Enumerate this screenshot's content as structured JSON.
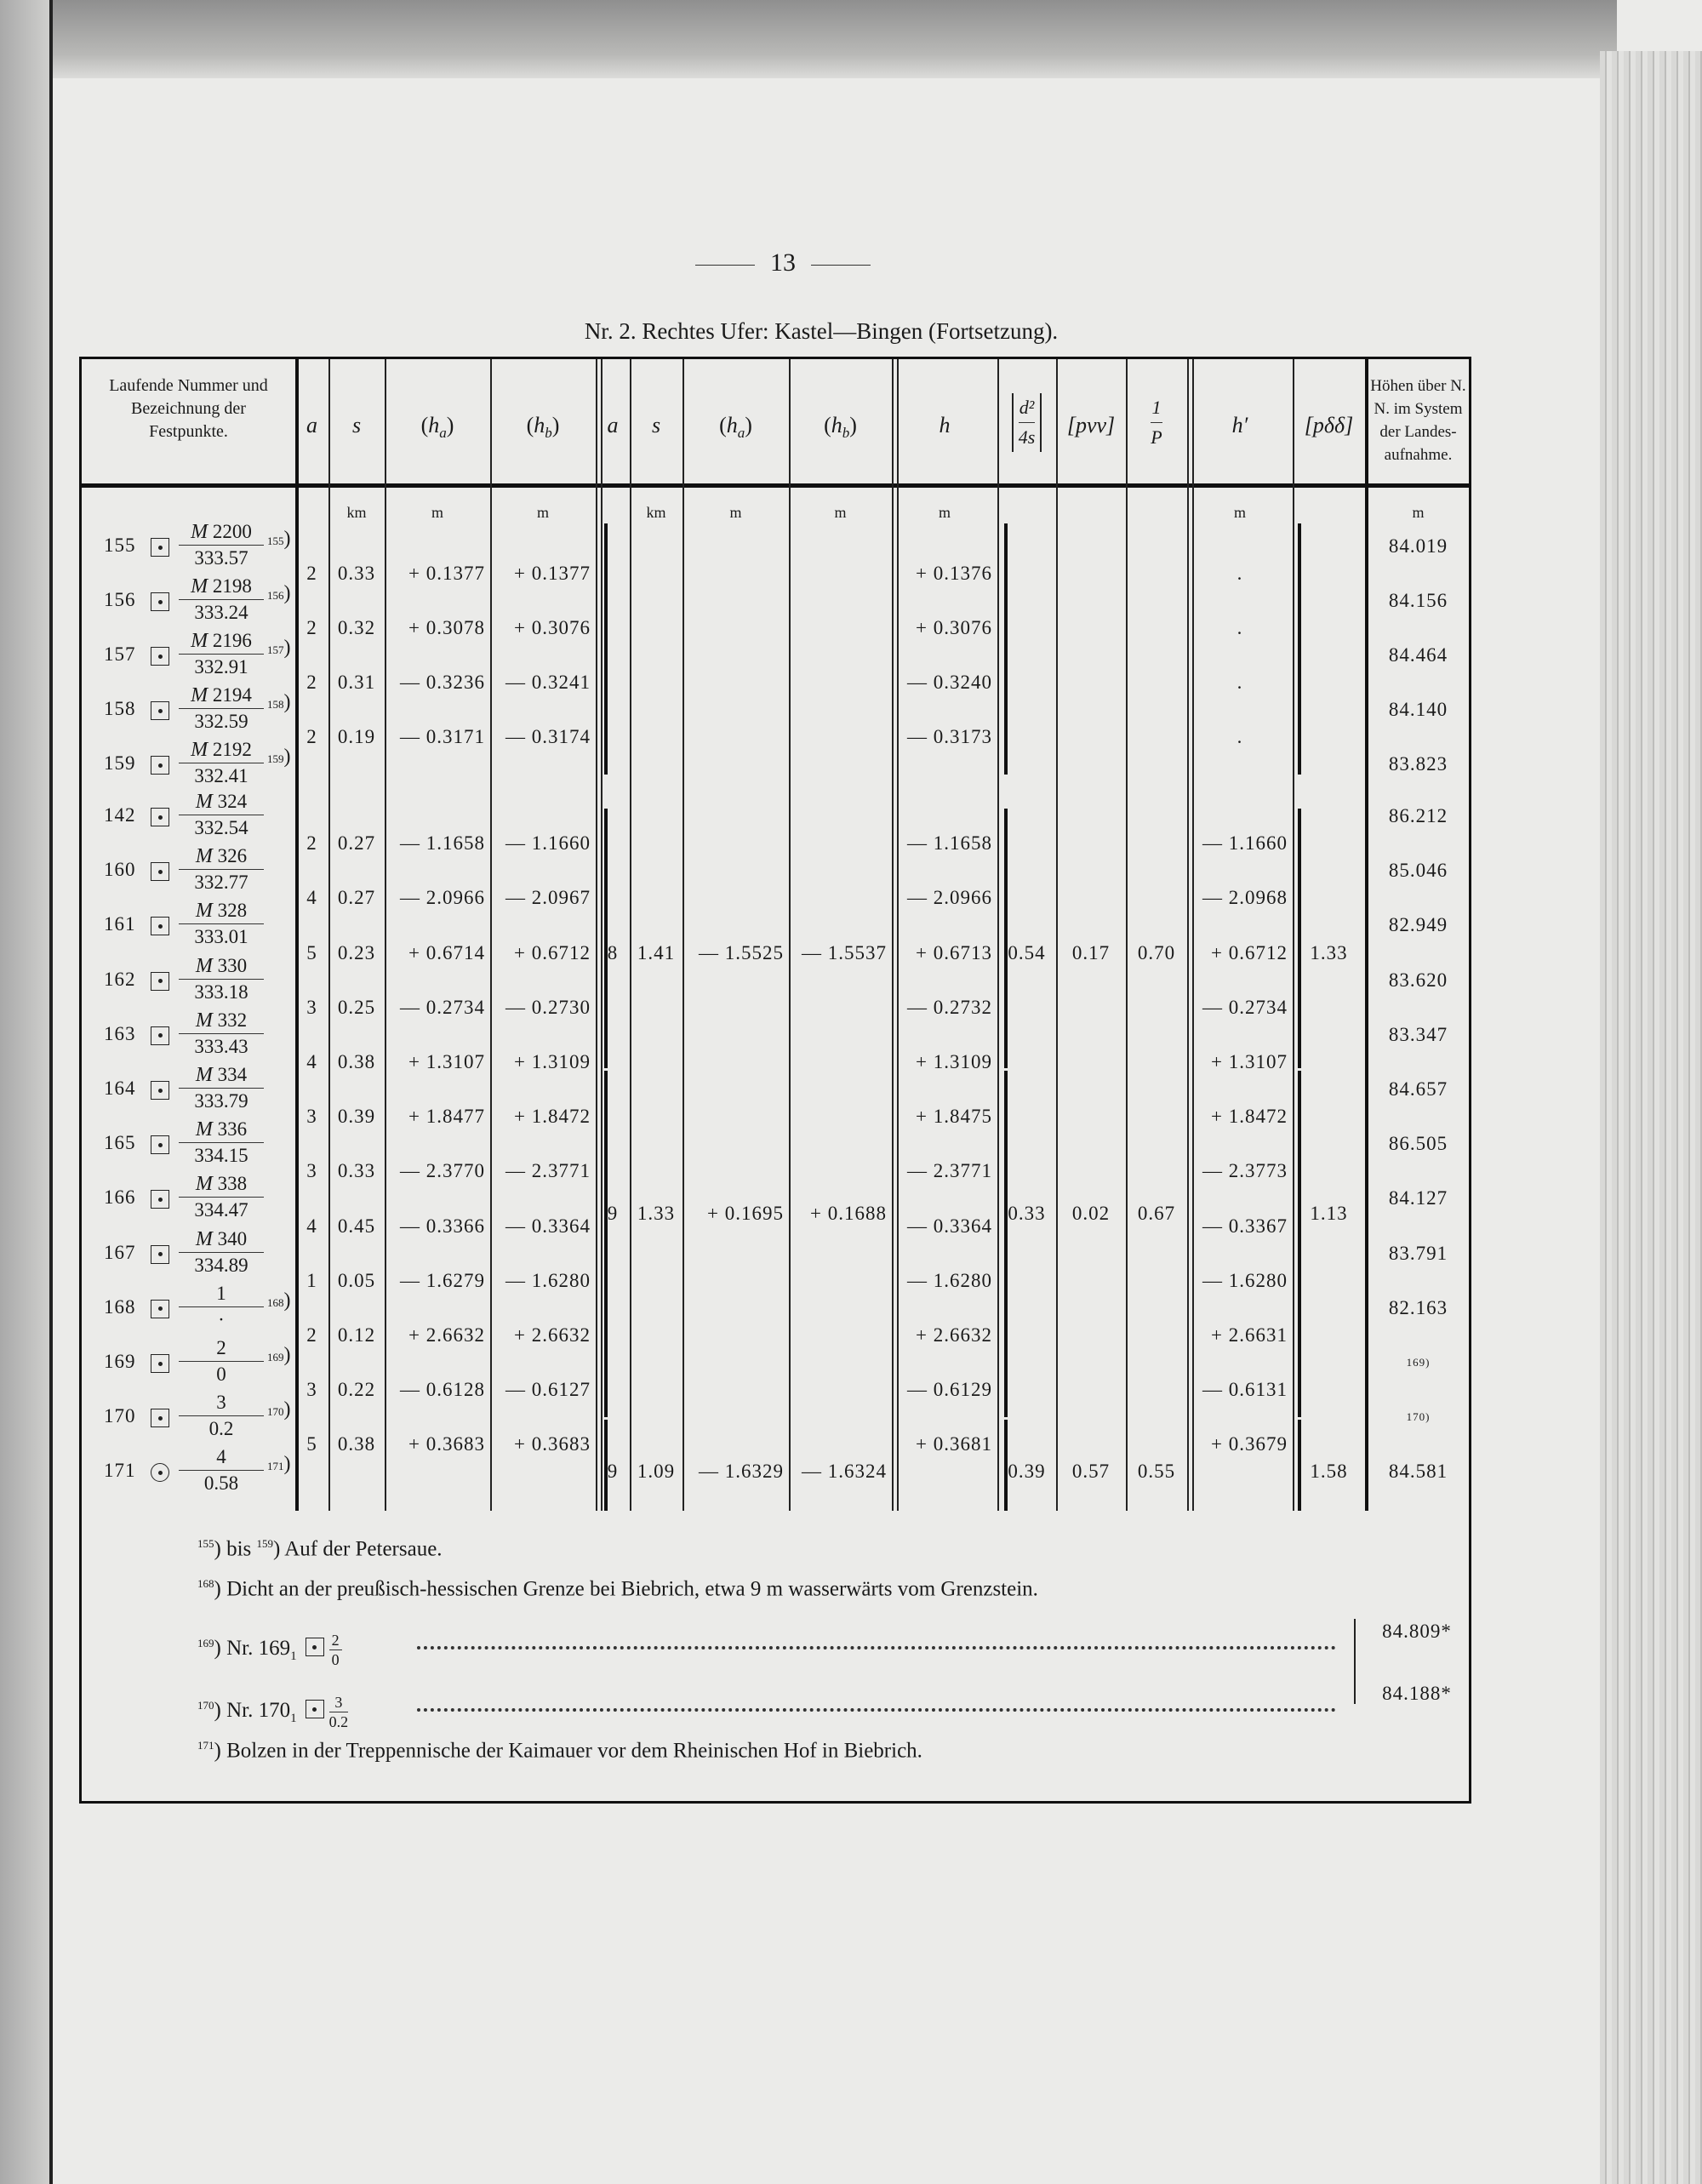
{
  "page_number": "13",
  "title": "Nr. 2. Rechtes Ufer: Kastel—Bingen (Fortsetzung).",
  "header": {
    "label_col": "Laufende Nummer und Bezeichnung der Festpunkte.",
    "a1": "a",
    "s1": "s",
    "ha1": {
      "sym": "h",
      "sub": "a"
    },
    "hb1": {
      "sym": "h",
      "sub": "b"
    },
    "a2": "a",
    "s2": "s",
    "ha2": {
      "sym": "h",
      "sub": "a"
    },
    "hb2": {
      "sym": "h",
      "sub": "b"
    },
    "h": "h",
    "d2": {
      "num": "d²",
      "den": "4s"
    },
    "pvv": "[pvv]",
    "invp": {
      "num": "1",
      "den": "P"
    },
    "hprime": "h′",
    "pdd": "[pδδ]",
    "heights": "Höhen über N. N. im System der Landes-aufnahme."
  },
  "units": {
    "s1": "km",
    "ha1": "m",
    "hb1": "m",
    "s2": "km",
    "ha2": "m",
    "hb2": "m",
    "h": "m",
    "hprime": "m",
    "heights": "m"
  },
  "block1": {
    "labels": [
      {
        "nr": "155",
        "mark": "square-dot",
        "num_prefix": "M",
        "num": "2200",
        "den": "333.57",
        "ref": "155",
        "height": "84.019"
      },
      {
        "nr": "156",
        "mark": "square-dot",
        "num_prefix": "M",
        "num": "2198",
        "den": "333.24",
        "ref": "156",
        "height": "84.156"
      },
      {
        "nr": "157",
        "mark": "square-dot",
        "num_prefix": "M",
        "num": "2196",
        "den": "332.91",
        "ref": "157",
        "height": "84.464"
      },
      {
        "nr": "158",
        "mark": "square-dot",
        "num_prefix": "M",
        "num": "2194",
        "den": "332.59",
        "ref": "158",
        "height": "84.140"
      },
      {
        "nr": "159",
        "mark": "square-dot",
        "num_prefix": "M",
        "num": "2192",
        "den": "332.41",
        "ref": "159",
        "height": "83.823"
      }
    ],
    "rows": [
      {
        "a": "2",
        "s": "0.33",
        "ha": "+ 0.1377",
        "hb": "+ 0.1377",
        "h": "+ 0.1376",
        "hprime": "."
      },
      {
        "a": "2",
        "s": "0.32",
        "ha": "+ 0.3078",
        "hb": "+ 0.3076",
        "h": "+ 0.3076",
        "hprime": "."
      },
      {
        "a": "2",
        "s": "0.31",
        "ha": "— 0.3236",
        "hb": "— 0.3241",
        "h": "— 0.3240",
        "hprime": "."
      },
      {
        "a": "2",
        "s": "0.19",
        "ha": "— 0.3171",
        "hb": "— 0.3174",
        "h": "— 0.3173",
        "hprime": "."
      }
    ]
  },
  "block2": {
    "labels": [
      {
        "nr": "142",
        "mark": "square-dot",
        "num_prefix": "M",
        "num": "324",
        "den": "332.54",
        "ref": "",
        "height": "86.212"
      },
      {
        "nr": "160",
        "mark": "square-dot",
        "num_prefix": "M",
        "num": "326",
        "den": "332.77",
        "ref": "",
        "height": "85.046"
      },
      {
        "nr": "161",
        "mark": "square-dot",
        "num_prefix": "M",
        "num": "328",
        "den": "333.01",
        "ref": "",
        "height": "82.949"
      },
      {
        "nr": "162",
        "mark": "square-dot",
        "num_prefix": "M",
        "num": "330",
        "den": "333.18",
        "ref": "",
        "height": "83.620"
      },
      {
        "nr": "163",
        "mark": "square-dot",
        "num_prefix": "M",
        "num": "332",
        "den": "333.43",
        "ref": "",
        "height": "83.347"
      },
      {
        "nr": "164",
        "mark": "square-dot",
        "num_prefix": "M",
        "num": "334",
        "den": "333.79",
        "ref": "",
        "height": "84.657"
      },
      {
        "nr": "165",
        "mark": "square-dot",
        "num_prefix": "M",
        "num": "336",
        "den": "334.15",
        "ref": "",
        "height": "86.505"
      },
      {
        "nr": "166",
        "mark": "square-dot",
        "num_prefix": "M",
        "num": "338",
        "den": "334.47",
        "ref": "",
        "height": "84.127"
      },
      {
        "nr": "167",
        "mark": "square-dot",
        "num_prefix": "M",
        "num": "340",
        "den": "334.89",
        "ref": "",
        "height": "83.791"
      },
      {
        "nr": "168",
        "mark": "square-dot",
        "num_prefix": "",
        "num": "1",
        "den": "·",
        "ref": "168",
        "height": "82.163"
      },
      {
        "nr": "169",
        "mark": "square-dot",
        "num_prefix": "",
        "num": "2",
        "den": "0",
        "ref": "169",
        "height": "169)"
      },
      {
        "nr": "170",
        "mark": "square-dot",
        "num_prefix": "",
        "num": "3",
        "den": "0.2",
        "ref": "170",
        "height": "170)"
      },
      {
        "nr": "171",
        "mark": "circle-dot",
        "num_prefix": "",
        "num": "4",
        "den": "0.58",
        "ref": "171",
        "height": "84.581"
      }
    ],
    "rows": [
      {
        "a": "2",
        "s": "0.27",
        "ha": "— 1.1658",
        "hb": "— 1.1660",
        "h": "— 1.1658",
        "hprime": "— 1.1660"
      },
      {
        "a": "4",
        "s": "0.27",
        "ha": "— 2.0966",
        "hb": "— 2.0967",
        "h": "— 2.0966",
        "hprime": "— 2.0968"
      },
      {
        "a": "5",
        "s": "0.23",
        "ha": "+ 0.6714",
        "hb": "+ 0.6712",
        "h": "+ 0.6713",
        "hprime": "+ 0.6712"
      },
      {
        "a": "3",
        "s": "0.25",
        "ha": "— 0.2734",
        "hb": "— 0.2730",
        "h": "— 0.2732",
        "hprime": "— 0.2734"
      },
      {
        "a": "4",
        "s": "0.38",
        "ha": "+ 1.3107",
        "hb": "+ 1.3109",
        "h": "+ 1.3109",
        "hprime": "+ 1.3107"
      },
      {
        "a": "3",
        "s": "0.39",
        "ha": "+ 1.8477",
        "hb": "+ 1.8472",
        "h": "+ 1.8475",
        "hprime": "+ 1.8472"
      },
      {
        "a": "3",
        "s": "0.33",
        "ha": "— 2.3770",
        "hb": "— 2.3771",
        "h": "— 2.3771",
        "hprime": "— 2.3773"
      },
      {
        "a": "4",
        "s": "0.45",
        "ha": "— 0.3366",
        "hb": "— 0.3364",
        "h": "— 0.3364",
        "hprime": "— 0.3367"
      },
      {
        "a": "1",
        "s": "0.05",
        "ha": "— 1.6279",
        "hb": "— 1.6280",
        "h": "— 1.6280",
        "hprime": "— 1.6280"
      },
      {
        "a": "2",
        "s": "0.12",
        "ha": "+ 2.6632",
        "hb": "+ 2.6632",
        "h": "+ 2.6632",
        "hprime": "+ 2.6631"
      },
      {
        "a": "3",
        "s": "0.22",
        "ha": "— 0.6128",
        "hb": "— 0.6127",
        "h": "— 0.6129",
        "hprime": "— 0.6131"
      },
      {
        "a": "5",
        "s": "0.38",
        "ha": "+ 0.3683",
        "hb": "+ 0.3683",
        "h": "+ 0.3681",
        "hprime": "+ 0.3679"
      }
    ],
    "groups": [
      {
        "a": "8",
        "s": "1.41",
        "ha": "— 1.5525",
        "hb": "— 1.5537",
        "d2": "0.54",
        "pvv": "0.17",
        "invp": "0.70",
        "pdd": "1.33"
      },
      {
        "a": "9",
        "s": "1.33",
        "ha": "+ 0.1695",
        "hb": "+ 0.1688",
        "d2": "0.33",
        "pvv": "0.02",
        "invp": "0.67",
        "pdd": "1.13"
      },
      {
        "a": "9",
        "s": "1.09",
        "ha": "— 1.6329",
        "hb": "— 1.6324",
        "d2": "0.39",
        "pvv": "0.57",
        "invp": "0.55",
        "pdd": "1.58"
      }
    ]
  },
  "footnotes": [
    {
      "ref": "155",
      "ref2": "159",
      "between": "bis",
      "text": "Auf der Petersaue."
    },
    {
      "ref": "168",
      "text": "Dicht an der preußisch-hessischen Grenze bei Biebrich, etwa 9 m wasserwärts vom Grenzstein."
    },
    {
      "ref": "169",
      "text": "Nr. 169",
      "sub": "1",
      "num": "2",
      "den": "0",
      "height": "84.809*"
    },
    {
      "ref": "170",
      "text": "Nr. 170",
      "sub": "1",
      "num": "3",
      "den": "0.2",
      "height": "84.188*"
    },
    {
      "ref": "171",
      "text": "Bolzen in der Treppennische der Kaimauer vor dem Rheinischen Hof in Biebrich."
    }
  ]
}
